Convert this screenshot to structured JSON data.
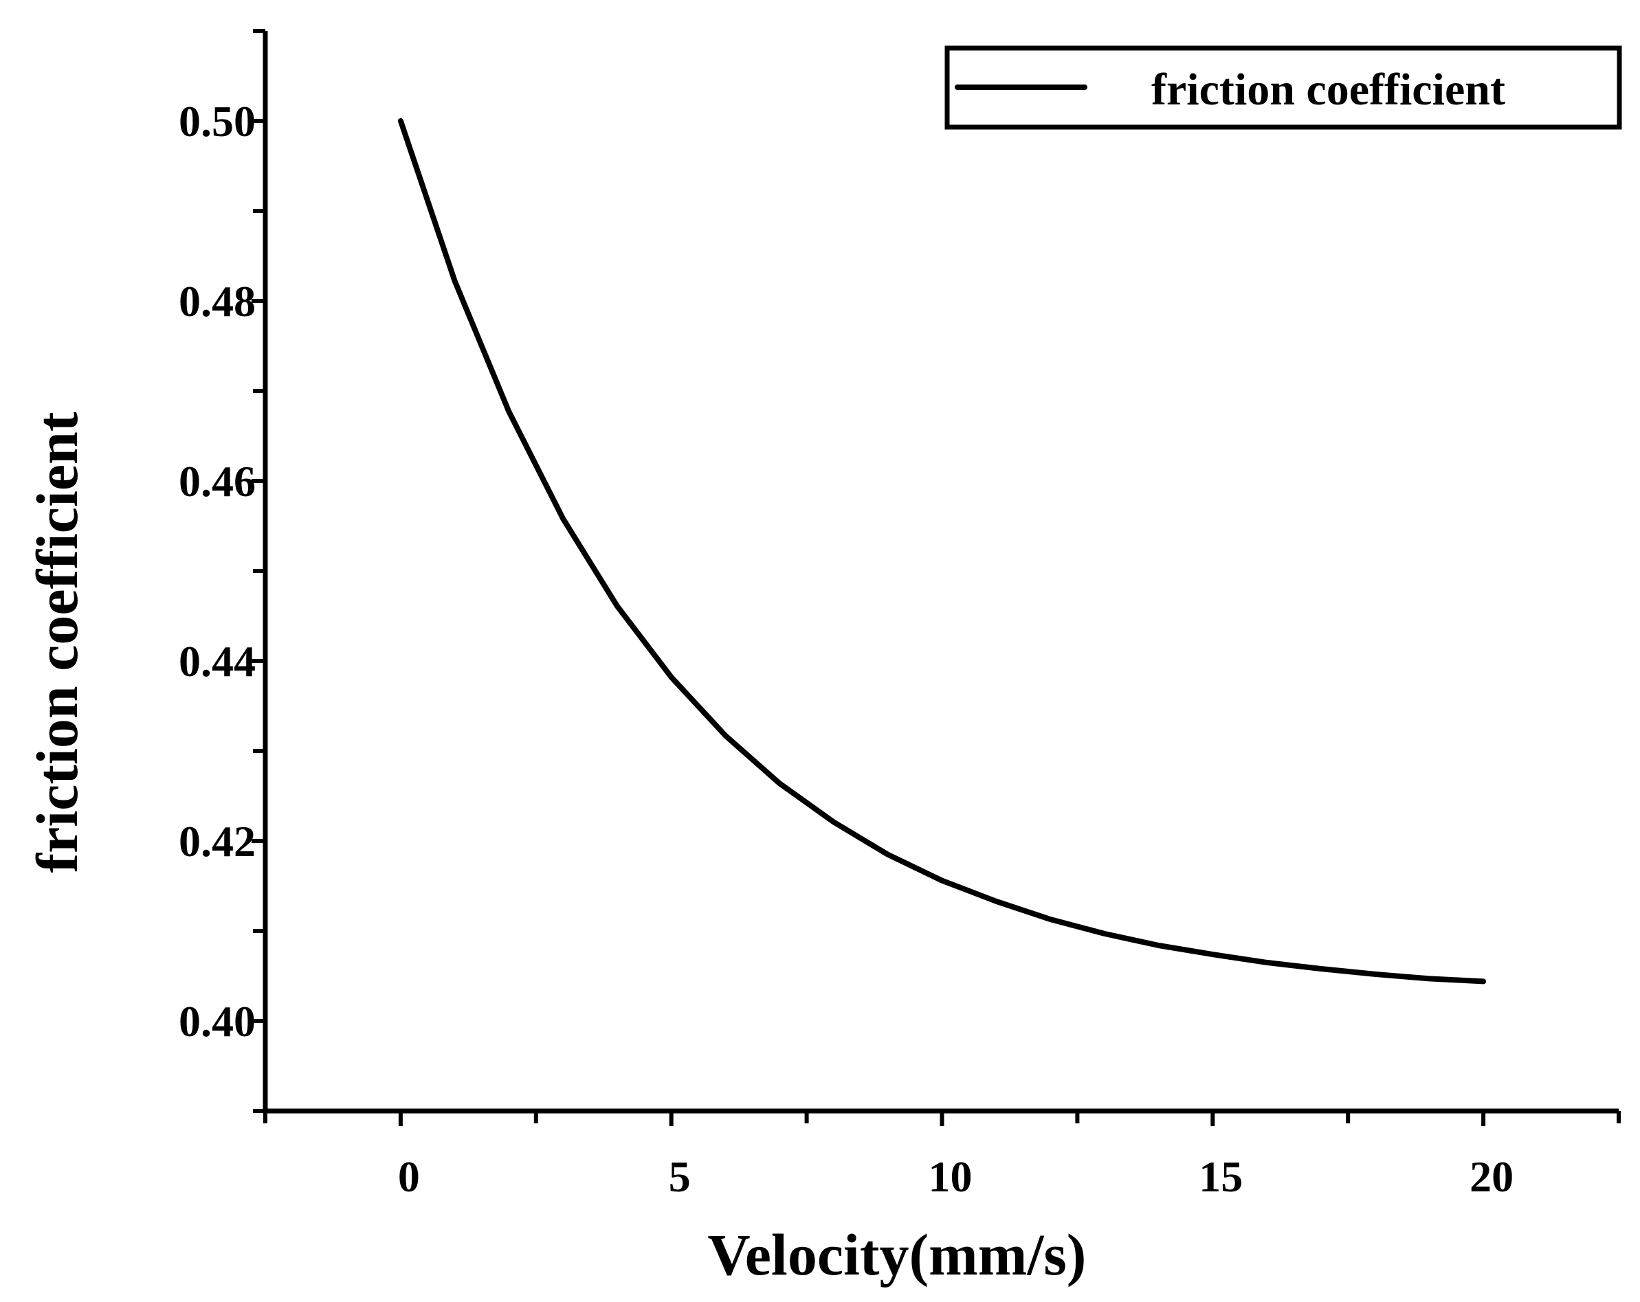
{
  "chart_data": {
    "type": "line",
    "title": "",
    "xlabel": "Velocity(mm/s)",
    "ylabel": "friction coefficient",
    "xlim": [
      -2.5,
      22.5
    ],
    "ylim": [
      0.39,
      0.51
    ],
    "x_ticks": [
      0,
      5,
      10,
      15,
      20
    ],
    "x_tick_labels": [
      "0",
      "5",
      "10",
      "15",
      "20"
    ],
    "x_minor_ticks": [
      -2.5,
      2.5,
      7.5,
      12.5,
      17.5,
      22.5
    ],
    "y_ticks": [
      0.4,
      0.42,
      0.44,
      0.46,
      0.48,
      0.5
    ],
    "y_tick_labels": [
      "0.40",
      "0.42",
      "0.44",
      "0.46",
      "0.48",
      "0.50"
    ],
    "y_minor_ticks": [
      0.39,
      0.41,
      0.43,
      0.45,
      0.47,
      0.49,
      0.51
    ],
    "grid": false,
    "legend": {
      "position": "top-right",
      "entries": [
        "friction coefficient"
      ]
    },
    "series": [
      {
        "name": "friction coefficient",
        "color": "#000000",
        "x": [
          0,
          1,
          2,
          3,
          4,
          5,
          6,
          7,
          8,
          9,
          10,
          11,
          12,
          13,
          14,
          15,
          16,
          17,
          18,
          19,
          20
        ],
        "y": [
          0.5,
          0.4822,
          0.4677,
          0.4558,
          0.4461,
          0.4382,
          0.4317,
          0.4264,
          0.4221,
          0.4185,
          0.4156,
          0.4133,
          0.4113,
          0.4097,
          0.4084,
          0.4074,
          0.4065,
          0.4058,
          0.4052,
          0.4047,
          0.4044
        ]
      }
    ]
  }
}
